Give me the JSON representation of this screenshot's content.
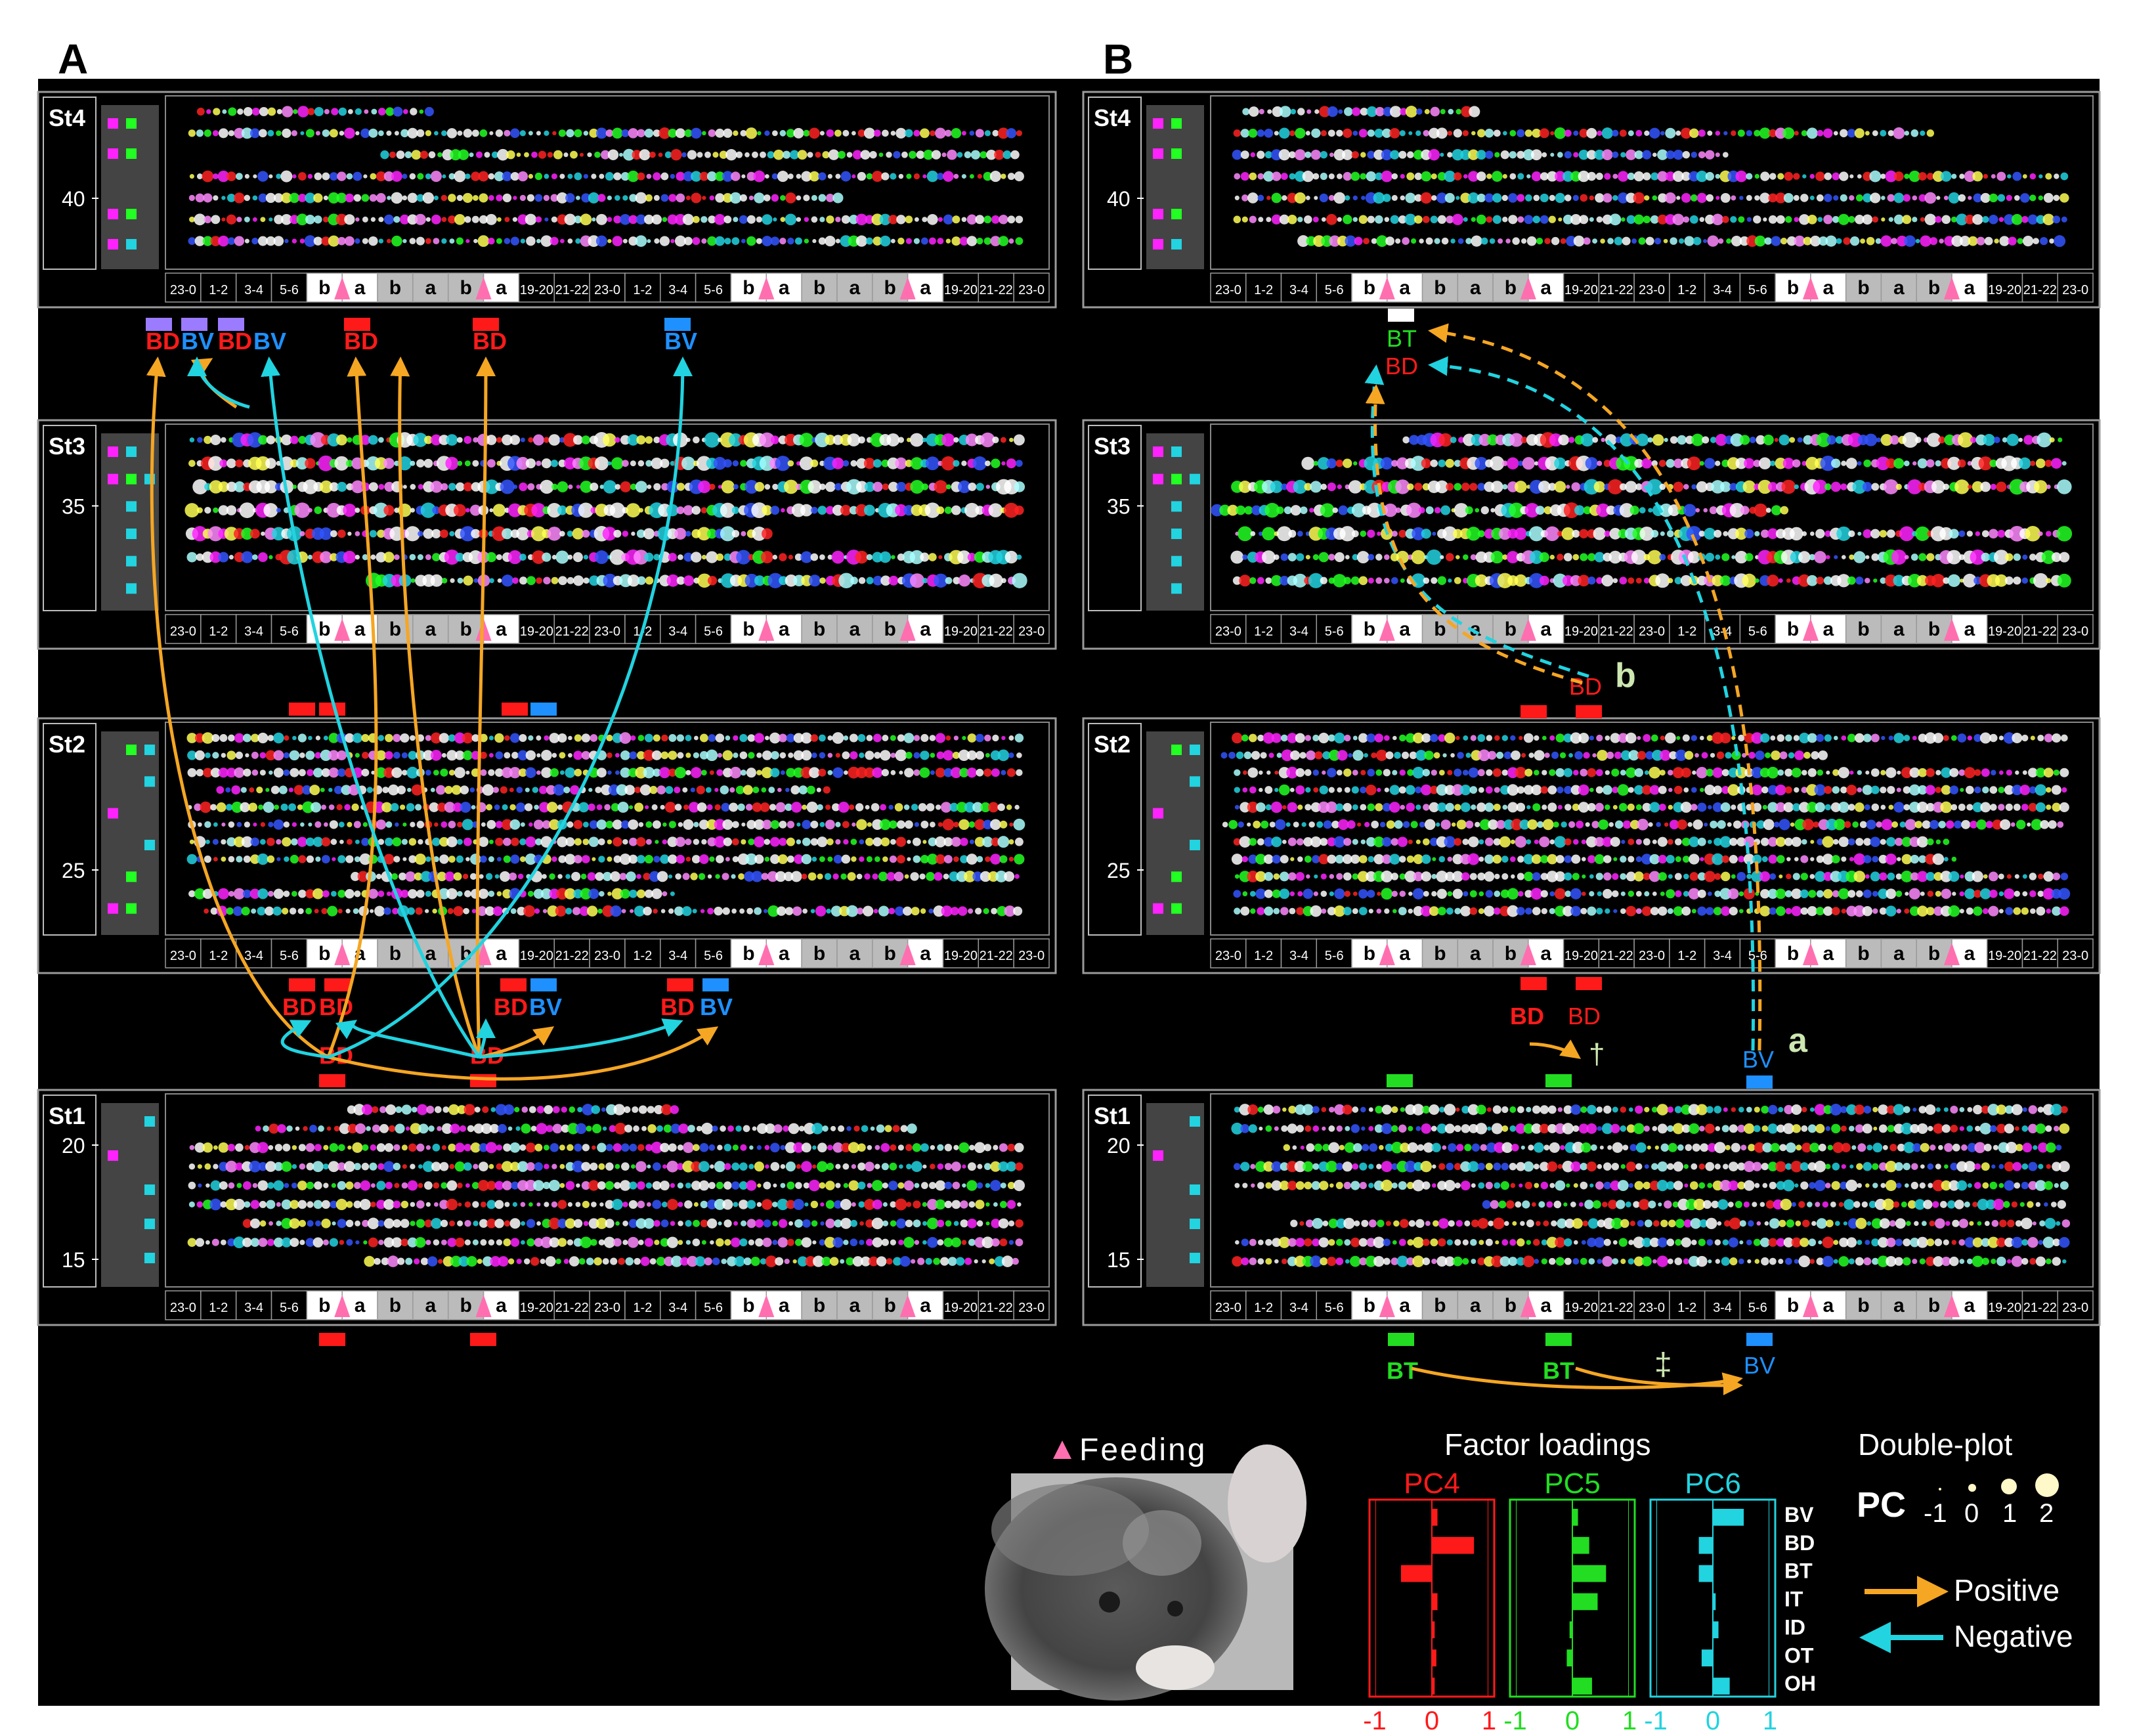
{
  "panels": {
    "A": "A",
    "B": "B"
  },
  "stages": [
    {
      "label": "St4",
      "ticks": [
        "40"
      ]
    },
    {
      "label": "St3",
      "ticks": [
        "35"
      ]
    },
    {
      "label": "St2",
      "ticks": [
        "25"
      ]
    },
    {
      "label": "St1",
      "ticks": [
        "20",
        "15"
      ]
    }
  ],
  "time_axis": [
    "23-0",
    "1-2",
    "3-4",
    "5-6",
    "b",
    "a",
    "b",
    "a",
    "b",
    "a",
    "19-20",
    "21-22",
    "23-0",
    "1-2",
    "3-4",
    "5-6",
    "b",
    "a",
    "b",
    "a",
    "b",
    "a",
    "19-20",
    "21-22",
    "23-0"
  ],
  "colors": {
    "BD": "#ff1a1a",
    "BV": "#1e90ff",
    "BT": "#22dd22",
    "positive": "#f5a623",
    "negative": "#22d3e0",
    "feeding": "#ff6fb0",
    "magenta": "#ff22ff",
    "background": "#000000"
  },
  "annotations_A": {
    "st4_below": [
      "BD",
      "BV",
      "BD",
      "BV",
      "BD",
      "BD",
      "BV"
    ],
    "st2_below": [
      "BD",
      "BD",
      "BD",
      "BV",
      "BD",
      "BV"
    ],
    "st1_above": [
      "BD",
      "BD"
    ]
  },
  "annotations_B": {
    "st4_below": [
      "BT",
      "BD"
    ],
    "b_label": "BD",
    "b_letter": "b",
    "st2_below": [
      "BD",
      "BD"
    ],
    "dagger": "†",
    "bv_a": "BV",
    "a_letter": "a",
    "st1_below": [
      "BT",
      "BT",
      "BV"
    ],
    "double_dagger": "‡"
  },
  "legend": {
    "feeding": "Feeding",
    "factor_title": "Factor loadings",
    "double_plot_title": "Double-plot",
    "pc_label": "PC",
    "size_values": [
      "-1",
      "0",
      "1",
      "2"
    ],
    "positive": "Positive",
    "negative": "Negative"
  },
  "chart_data": {
    "type": "bar",
    "title": "Factor loadings",
    "categories": [
      "BV",
      "BD",
      "BT",
      "IT",
      "ID",
      "OT",
      "OH"
    ],
    "xlim": [
      -1,
      1
    ],
    "ticks": [
      "-1",
      "0",
      "1"
    ],
    "series": [
      {
        "name": "PC4",
        "color": "#ff1a1a",
        "values": [
          0.1,
          0.75,
          -0.55,
          0.1,
          0.05,
          0.08,
          0.05
        ]
      },
      {
        "name": "PC5",
        "color": "#22dd22",
        "values": [
          0.1,
          0.3,
          0.6,
          0.45,
          -0.05,
          -0.1,
          0.35
        ]
      },
      {
        "name": "PC6",
        "color": "#22d3e0",
        "values": [
          0.55,
          -0.25,
          -0.25,
          0.05,
          0.1,
          -0.2,
          0.3
        ]
      }
    ]
  }
}
